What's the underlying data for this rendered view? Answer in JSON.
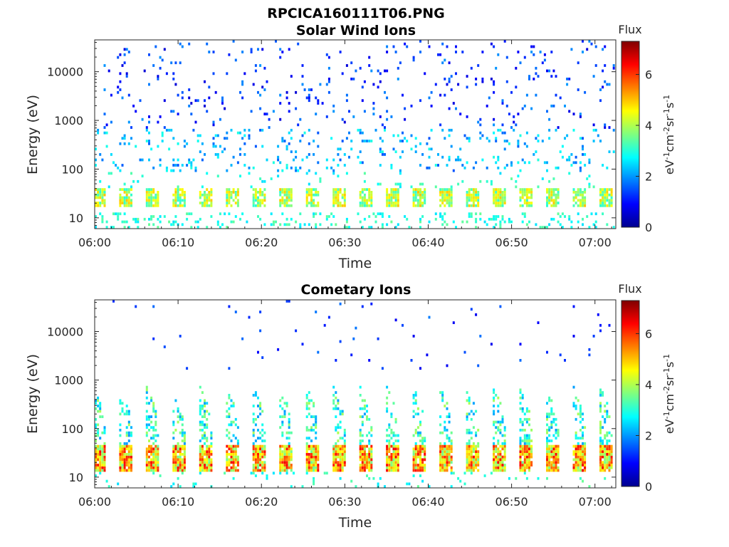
{
  "figure": {
    "title": "RPCICA160111T06.PNG"
  },
  "chart_data": [
    {
      "type": "heatmap",
      "title": "Solar Wind Ions",
      "xlabel": "Time",
      "ylabel": "Energy (eV)",
      "x_ticks": [
        "06:00",
        "06:10",
        "06:20",
        "06:30",
        "06:40",
        "06:50",
        "07:00"
      ],
      "x_range_minutes": [
        0,
        62.5
      ],
      "y_ticks": [
        10,
        100,
        1000,
        10000
      ],
      "y_tick_labels": [
        "10",
        "100",
        "1000",
        "10000"
      ],
      "ylim": [
        6,
        45000
      ],
      "y_scale": "log",
      "colorbar": {
        "label_top": "Flux",
        "label_side": "eV-1cm-2sr-1s-1",
        "ticks": [
          "0",
          "2",
          "4",
          "6"
        ],
        "range": [
          0,
          7.3
        ],
        "colormap": "jet"
      },
      "features": {
        "periodic_low_energy_band_eV": [
          15,
          40
        ],
        "band_flux_range": [
          3,
          5
        ],
        "sparse_high_energy_flux_range": [
          0.5,
          2.5
        ],
        "burst_period_minutes": 3.2
      }
    },
    {
      "type": "heatmap",
      "title": "Cometary Ions",
      "xlabel": "Time",
      "ylabel": "Energy (eV)",
      "x_ticks": [
        "06:00",
        "06:10",
        "06:20",
        "06:30",
        "06:40",
        "06:50",
        "07:00"
      ],
      "x_range_minutes": [
        0,
        62.5
      ],
      "y_ticks": [
        10,
        100,
        1000,
        10000
      ],
      "y_tick_labels": [
        "10",
        "100",
        "1000",
        "10000"
      ],
      "ylim": [
        6,
        45000
      ],
      "y_scale": "log",
      "colorbar": {
        "label_top": "Flux",
        "label_side": "eV-1cm-2sr-1s-1",
        "ticks": [
          "0",
          "2",
          "4",
          "6"
        ],
        "range": [
          0,
          7.3
        ],
        "colormap": "jet"
      },
      "features": {
        "periodic_low_energy_band_eV": [
          12,
          45
        ],
        "band_flux_range": [
          4,
          6.5
        ],
        "dispersion_tail_top_eV": 700,
        "burst_period_minutes": 3.2
      }
    }
  ]
}
